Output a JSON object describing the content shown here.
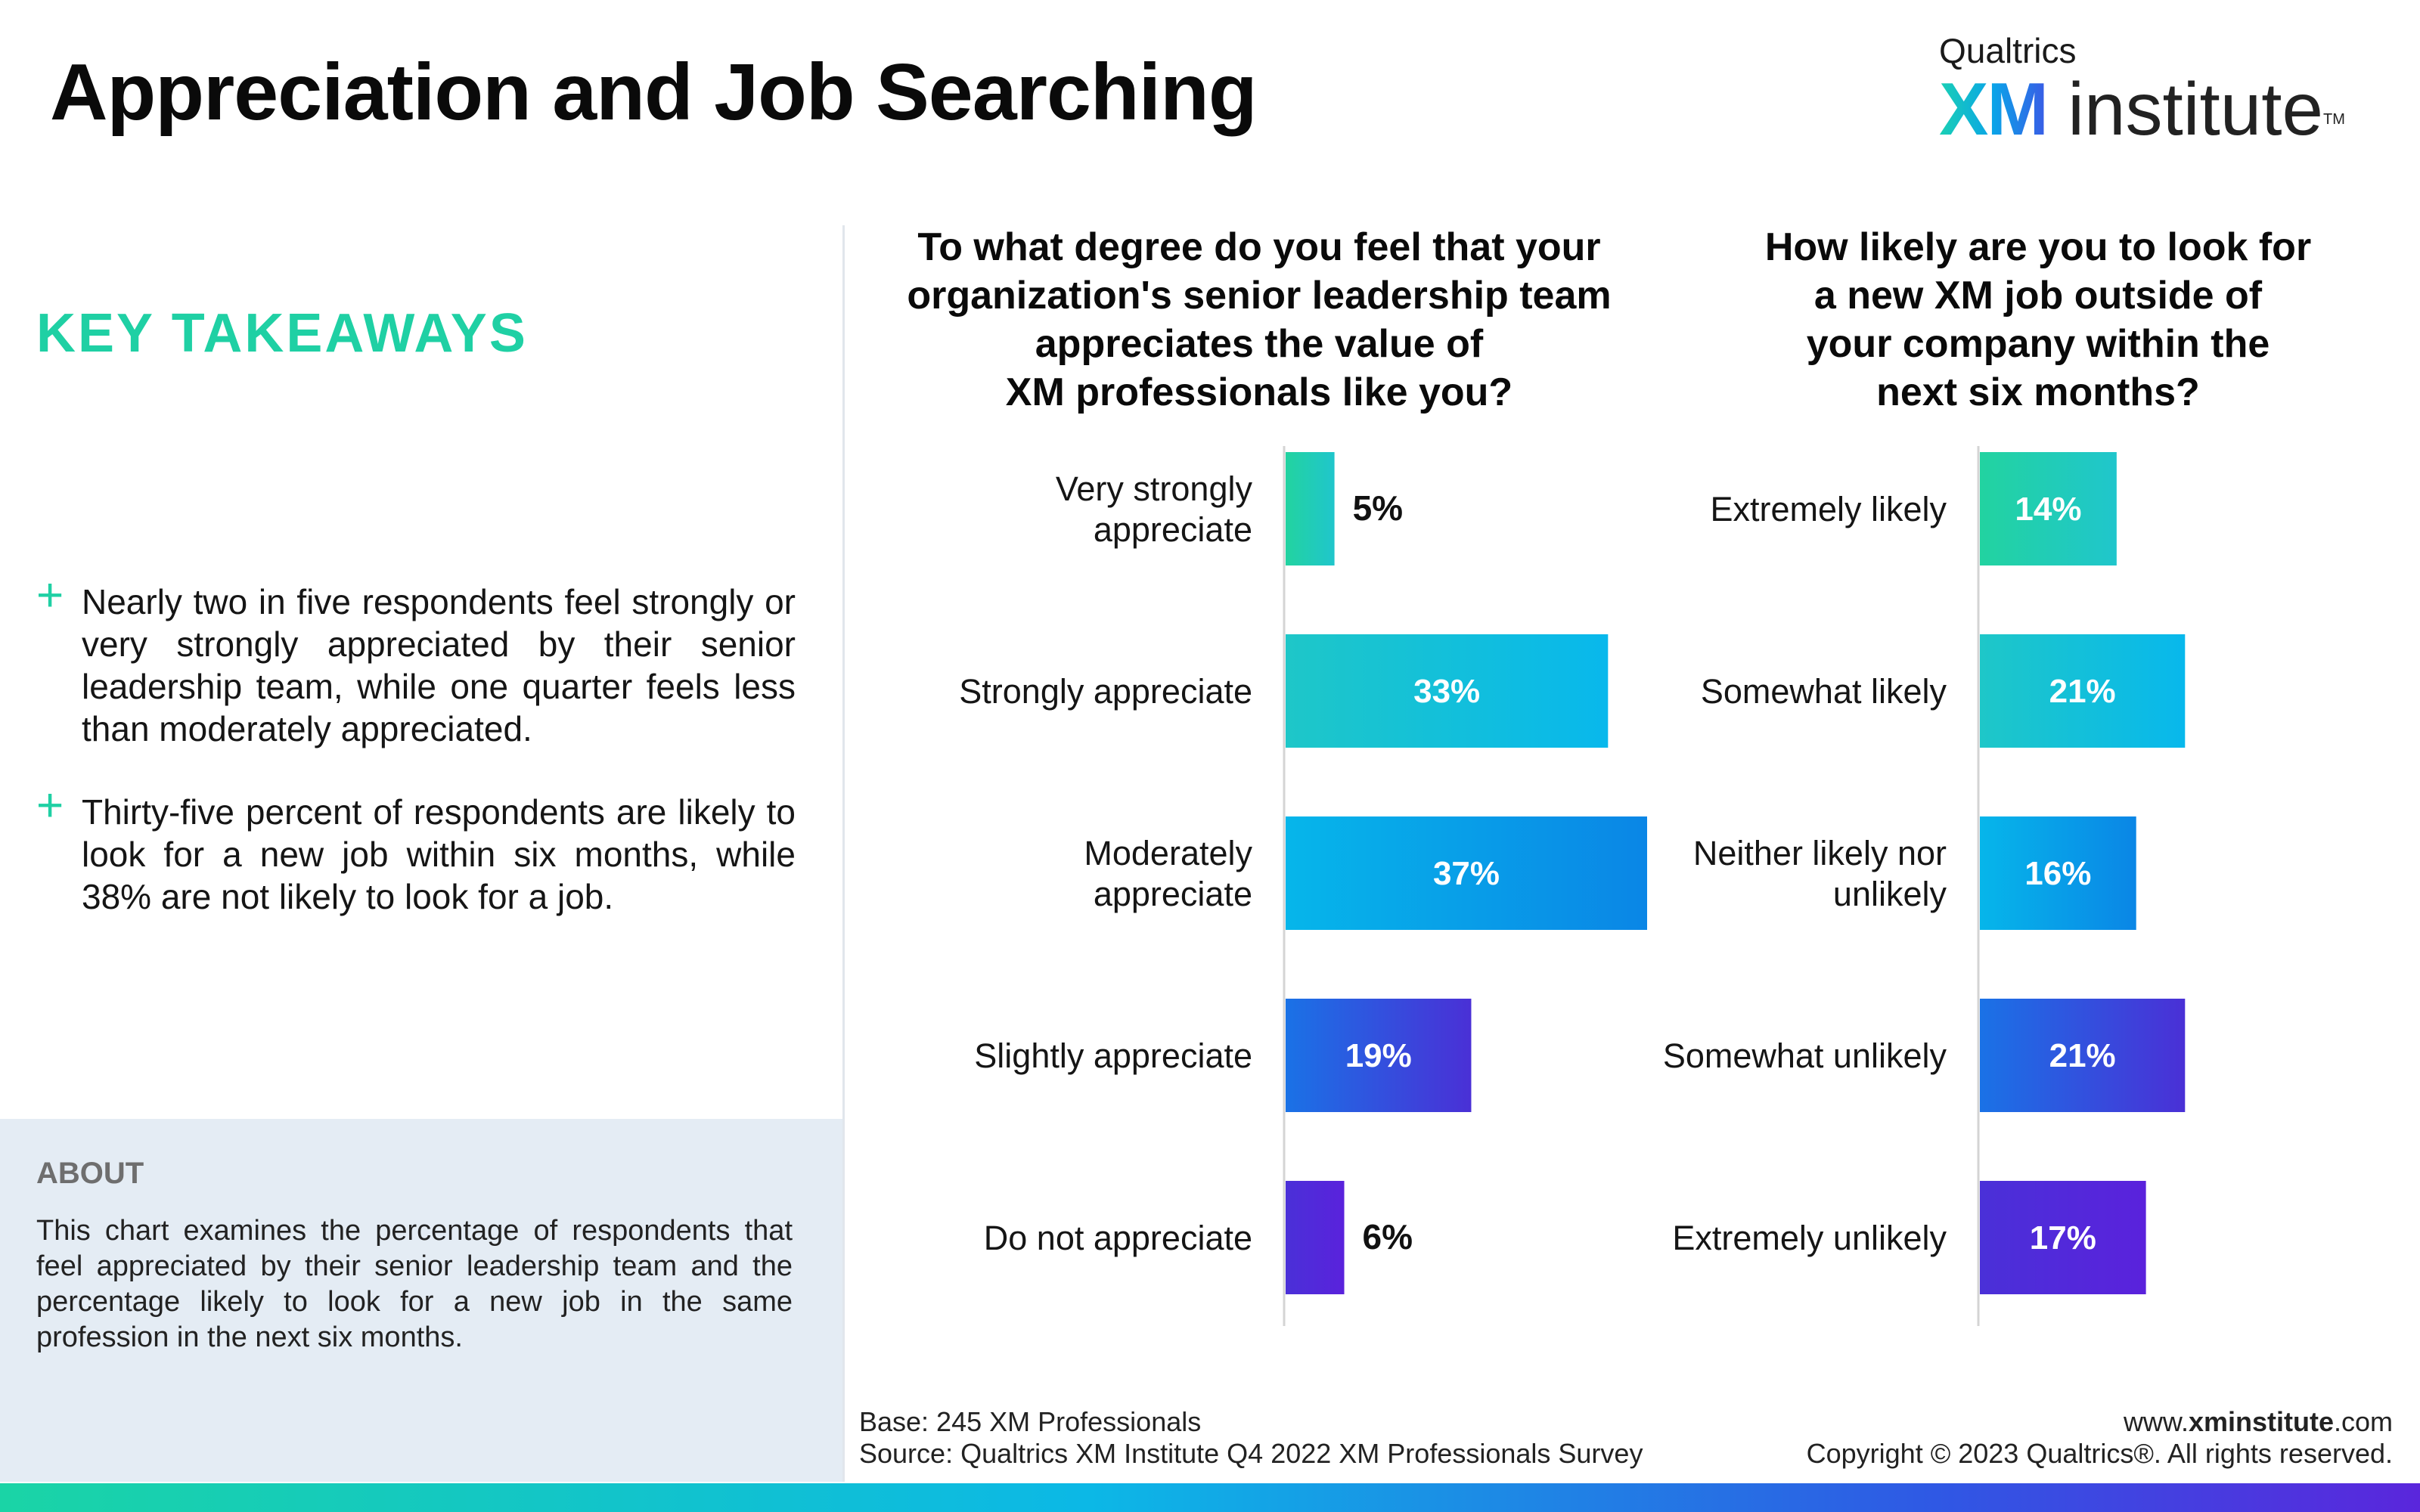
{
  "header": {
    "title": "Appreciation and Job Searching",
    "logo_top": "Qualtrics",
    "logo_xm": "XM",
    "logo_rest": "institute",
    "logo_tm": "TM"
  },
  "takeaways": {
    "heading": "KEY TAKEAWAYS",
    "bullet_symbol": "+",
    "items": [
      "Nearly two in five respondents feel strongly or very strongly appreciated by their senior leadership team, while one quarter feels less than moderately appreciated.",
      "Thirty-five percent of respondents are likely to look for a new job within six months, while 38% are not likely to look for a job."
    ]
  },
  "about": {
    "heading": "ABOUT",
    "text": "This chart examines the percentage of respondents that feel appreciated by their senior leadership team and the percentage likely to look for a new job in the same profession in the next six months."
  },
  "footer": {
    "base": "Base: 245 XM Professionals",
    "source": "Source: Qualtrics XM Institute Q4 2022 XM Professionals Survey",
    "site_prefix": "www.",
    "site_bold": "xminstitute",
    "site_suffix": ".com",
    "copyright": "Copyright © 2023 Qualtrics®. All rights reserved."
  },
  "chart_data": [
    {
      "type": "bar",
      "orientation": "horizontal",
      "title_lines": [
        "To what degree do you feel that your",
        "organization's senior leadership team",
        "appreciates the value of",
        "XM professionals like you?"
      ],
      "categories": [
        [
          "Very strongly",
          "appreciate"
        ],
        [
          "Strongly appreciate"
        ],
        [
          "Moderately",
          "appreciate"
        ],
        [
          "Slightly appreciate"
        ],
        [
          "Do not appreciate"
        ]
      ],
      "values": [
        5,
        33,
        37,
        19,
        6
      ],
      "labels": [
        "5%",
        "33%",
        "37%",
        "19%",
        "6%"
      ],
      "xlim": [
        0,
        37
      ],
      "unit": "%",
      "colors": [
        [
          "#22d3a0",
          "#20c6cc"
        ],
        [
          "#1ec7c8",
          "#08b8ec"
        ],
        [
          "#06b6ea",
          "#0a86e6"
        ],
        [
          "#1a72e6",
          "#4a30d6"
        ],
        [
          "#4a30d8",
          "#5a22dc"
        ]
      ]
    },
    {
      "type": "bar",
      "orientation": "horizontal",
      "title_lines": [
        "How likely are you to look for",
        "a new XM job outside of",
        "your company within the",
        "next six months?"
      ],
      "categories": [
        [
          "Extremely likely"
        ],
        [
          "Somewhat likely"
        ],
        [
          "Neither likely nor",
          "unlikely"
        ],
        [
          "Somewhat unlikely"
        ],
        [
          "Extremely unlikely"
        ]
      ],
      "values": [
        14,
        21,
        16,
        21,
        17
      ],
      "labels": [
        "14%",
        "21%",
        "16%",
        "21%",
        "17%"
      ],
      "xlim": [
        0,
        37
      ],
      "unit": "%",
      "colors": [
        [
          "#22d3a0",
          "#20c6cc"
        ],
        [
          "#1ec7c8",
          "#08b8ec"
        ],
        [
          "#06b6ea",
          "#0a86e6"
        ],
        [
          "#1a72e6",
          "#4a30d6"
        ],
        [
          "#4a30d8",
          "#5a22dc"
        ]
      ]
    }
  ]
}
